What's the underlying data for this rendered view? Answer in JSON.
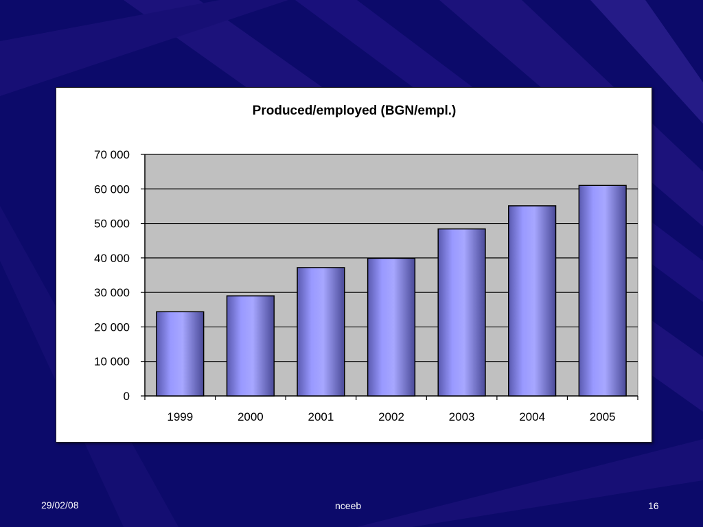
{
  "slide": {
    "colors": {
      "background": "#0c0a6a",
      "ray": "#2a1a8a",
      "ray_light": "#3b2aa0"
    },
    "footer": {
      "date": "29/02/08",
      "center": "nceeb",
      "page": "16"
    }
  },
  "chart_data": {
    "type": "bar",
    "title": "Produced/employed (BGN/empl.)",
    "xlabel": "",
    "ylabel": "",
    "categories": [
      "1999",
      "2000",
      "2001",
      "2002",
      "2003",
      "2004",
      "2005"
    ],
    "values": [
      24400,
      29000,
      37200,
      39900,
      48400,
      55100,
      61000
    ],
    "ylim": [
      0,
      70000
    ],
    "yticks": [
      0,
      10000,
      20000,
      30000,
      40000,
      50000,
      60000,
      70000
    ],
    "ytick_labels": [
      "0",
      "10 000",
      "20 000",
      "30 000",
      "40 000",
      "50 000",
      "60 000",
      "70 000"
    ],
    "grid": true,
    "legend": "none",
    "colors": {
      "bar": "#9999ff",
      "bar_dark": "#5a5ab0",
      "plot_area": "#c0c0c0",
      "gridline": "#000000"
    }
  }
}
